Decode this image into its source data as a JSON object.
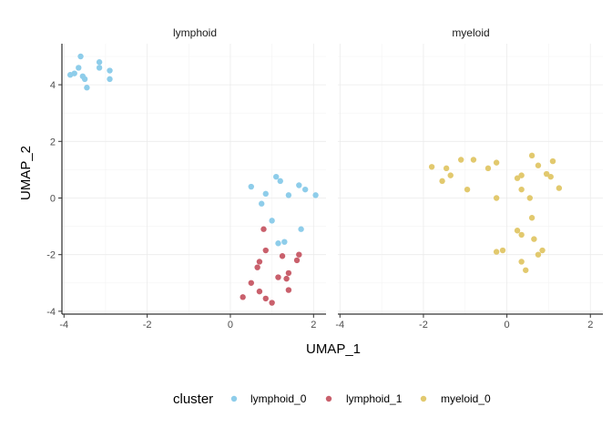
{
  "chart_data": {
    "type": "scatter",
    "facets": [
      "lymphoid",
      "myeloid"
    ],
    "xlabel": "UMAP_1",
    "ylabel": "UMAP_2",
    "xlim": [
      -4.05,
      2.3
    ],
    "ylim": [
      -4.1,
      5.45
    ],
    "xticks": [
      -4,
      -2,
      0,
      2
    ],
    "yticks": [
      -4,
      -2,
      0,
      2,
      4
    ],
    "xtick_labels": [
      "-4",
      "-2",
      "0",
      "2"
    ],
    "ytick_labels": [
      "-4",
      "-2",
      "0",
      "2",
      "4"
    ],
    "grid": true,
    "legend_title": "cluster",
    "legend_position": "bottom",
    "series": [
      {
        "name": "lymphoid_0",
        "facet": "lymphoid",
        "color": "#8ecdea",
        "x": [
          -3.6,
          -3.15,
          -3.65,
          -3.55,
          -3.75,
          -3.15,
          -2.9,
          -3.85,
          -3.5,
          -2.9,
          -3.45,
          0.5,
          0.85,
          1.1,
          1.2,
          1.65,
          1.8,
          1.4,
          2.05,
          0.75,
          1.0,
          1.15,
          1.3,
          1.7
        ],
        "y": [
          5.0,
          4.8,
          4.6,
          4.3,
          4.4,
          4.6,
          4.5,
          4.35,
          4.2,
          4.2,
          3.9,
          0.4,
          0.15,
          0.75,
          0.6,
          0.45,
          0.3,
          0.1,
          0.1,
          -0.2,
          -0.8,
          -1.6,
          -1.55,
          -1.1
        ]
      },
      {
        "name": "lymphoid_1",
        "facet": "lymphoid",
        "color": "#c9606c",
        "x": [
          0.8,
          0.85,
          1.25,
          1.65,
          1.6,
          0.7,
          0.65,
          1.4,
          1.35,
          0.5,
          1.15,
          1.4,
          0.7,
          0.85,
          0.3,
          1.0
        ],
        "y": [
          -1.1,
          -1.85,
          -2.05,
          -2.0,
          -2.2,
          -2.25,
          -2.45,
          -2.65,
          -2.85,
          -3.0,
          -2.8,
          -3.25,
          -3.3,
          -3.55,
          -3.5,
          -3.7
        ]
      },
      {
        "name": "myeloid_0",
        "facet": "myeloid",
        "color": "#e2c96e",
        "x": [
          -1.8,
          -1.1,
          -0.8,
          -0.25,
          0.6,
          1.1,
          -0.45,
          -1.45,
          -1.35,
          0.75,
          0.95,
          0.35,
          1.05,
          -1.55,
          -0.95,
          0.25,
          1.25,
          0.35,
          0.55,
          -0.25,
          0.6,
          0.25,
          0.35,
          0.65,
          0.85,
          -0.1,
          -0.25,
          0.75,
          0.35,
          0.45
        ],
        "y": [
          1.1,
          1.35,
          1.35,
          1.25,
          1.5,
          1.3,
          1.05,
          1.05,
          0.8,
          1.15,
          0.85,
          0.8,
          0.75,
          0.6,
          0.3,
          0.7,
          0.35,
          0.3,
          0.0,
          0.0,
          -0.7,
          -1.15,
          -1.3,
          -1.45,
          -1.85,
          -1.85,
          -1.9,
          -2.0,
          -2.25,
          -2.55
        ]
      }
    ]
  }
}
